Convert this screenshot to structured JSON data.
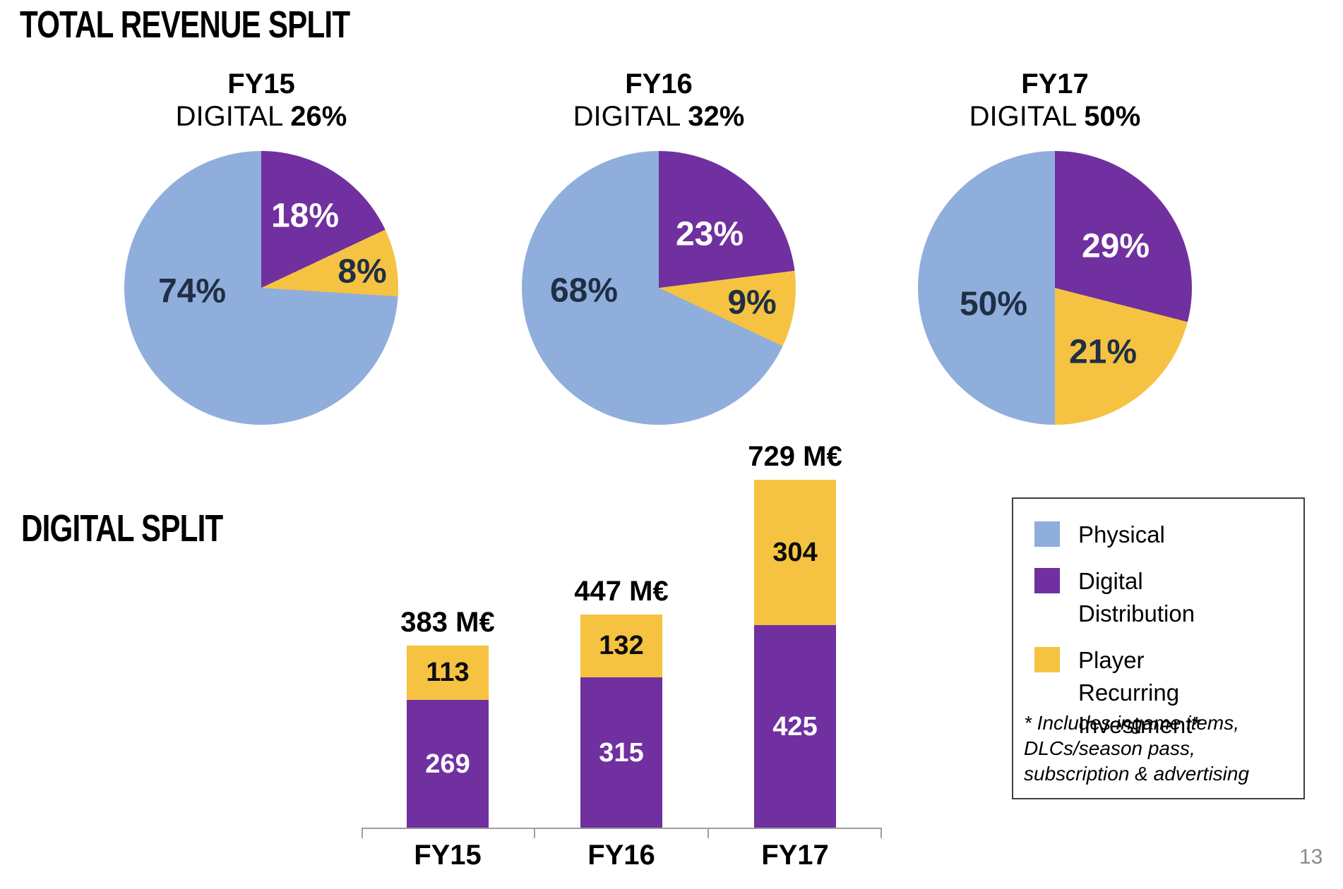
{
  "slide": {
    "title": "TOTAL REVENUE SPLIT",
    "section2_title": "DIGITAL SPLIT",
    "page_number": "13"
  },
  "colors": {
    "physical": "#8FAEDC",
    "digital_distribution": "#7030A0",
    "player_recurring": "#F5C242",
    "dark_label": "#1F2F44",
    "axis": "#9E9E9E"
  },
  "pies": [
    {
      "year": "FY15",
      "digital_word": "DIGITAL",
      "digital_pct": "26%",
      "slices": {
        "digital": 18,
        "pri": 8,
        "physical": 74
      },
      "labels": {
        "physical": "74%",
        "digital": "18%",
        "pri": "8%"
      }
    },
    {
      "year": "FY16",
      "digital_word": "DIGITAL",
      "digital_pct": "32%",
      "slices": {
        "digital": 23,
        "pri": 9,
        "physical": 68
      },
      "labels": {
        "physical": "68%",
        "digital": "23%",
        "pri": "9%"
      }
    },
    {
      "year": "FY17",
      "digital_word": "DIGITAL",
      "digital_pct": "50%",
      "slices": {
        "digital": 29,
        "pri": 21,
        "physical": 50
      },
      "labels": {
        "physical": "50%",
        "digital": "29%",
        "pri": "21%"
      }
    }
  ],
  "bars": [
    {
      "category": "FY15",
      "total": "383 M€",
      "digital": 269,
      "pri": 113
    },
    {
      "category": "FY16",
      "total": "447 M€",
      "digital": 315,
      "pri": 132
    },
    {
      "category": "FY17",
      "total": "729 M€",
      "digital": 425,
      "pri": 304
    }
  ],
  "legend": {
    "items": [
      {
        "key": "physical",
        "label": "Physical"
      },
      {
        "key": "digital_distribution",
        "label": "Digital Distribution"
      },
      {
        "key": "player_recurring",
        "label": "Player Recurring Investment*"
      }
    ],
    "footnote_lines": [
      "* Includes ingame items,",
      "DLCs/season pass,",
      "subscription & advertising"
    ]
  },
  "chart_data": [
    {
      "type": "pie",
      "title": "FY15 DIGITAL 26%",
      "labels": [
        "Physical",
        "Digital Distribution",
        "Player Recurring Investment"
      ],
      "values": [
        74,
        18,
        8
      ],
      "unit": "%",
      "colors": [
        "#8FAEDC",
        "#7030A0",
        "#F5C242"
      ],
      "start_angle": "12 o'clock, Digital Distribution first, clockwise"
    },
    {
      "type": "pie",
      "title": "FY16 DIGITAL 32%",
      "labels": [
        "Physical",
        "Digital Distribution",
        "Player Recurring Investment"
      ],
      "values": [
        68,
        23,
        9
      ],
      "unit": "%",
      "colors": [
        "#8FAEDC",
        "#7030A0",
        "#F5C242"
      ],
      "start_angle": "12 o'clock, Digital Distribution first, clockwise"
    },
    {
      "type": "pie",
      "title": "FY17 DIGITAL 50%",
      "labels": [
        "Physical",
        "Digital Distribution",
        "Player Recurring Investment"
      ],
      "values": [
        50,
        29,
        21
      ],
      "unit": "%",
      "colors": [
        "#8FAEDC",
        "#7030A0",
        "#F5C242"
      ],
      "start_angle": "12 o'clock, Digital Distribution first, clockwise"
    },
    {
      "type": "bar",
      "stacked": true,
      "title": "DIGITAL SPLIT",
      "categories": [
        "FY15",
        "FY16",
        "FY17"
      ],
      "series": [
        {
          "name": "Digital Distribution",
          "color": "#7030A0",
          "values": [
            269,
            315,
            425
          ]
        },
        {
          "name": "Player Recurring Investment",
          "color": "#F5C242",
          "values": [
            113,
            132,
            304
          ]
        }
      ],
      "totals": [
        383,
        447,
        729
      ],
      "total_labels": [
        "383 M€",
        "447 M€",
        "729 M€"
      ],
      "unit": "M€",
      "ylabel": "",
      "grid": false,
      "legend_position": "right"
    }
  ]
}
